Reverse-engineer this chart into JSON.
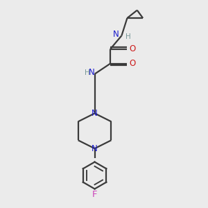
{
  "bg_color": "#ebebeb",
  "bond_color": "#3a3a3a",
  "N_color": "#1a1acc",
  "O_color": "#cc1a1a",
  "F_color": "#cc44bb",
  "H_color": "#7a9a9a",
  "line_width": 1.6,
  "fig_size": [
    3.0,
    3.0
  ],
  "dpi": 100,
  "xlim": [
    0,
    10
  ],
  "ylim": [
    0,
    10
  ]
}
